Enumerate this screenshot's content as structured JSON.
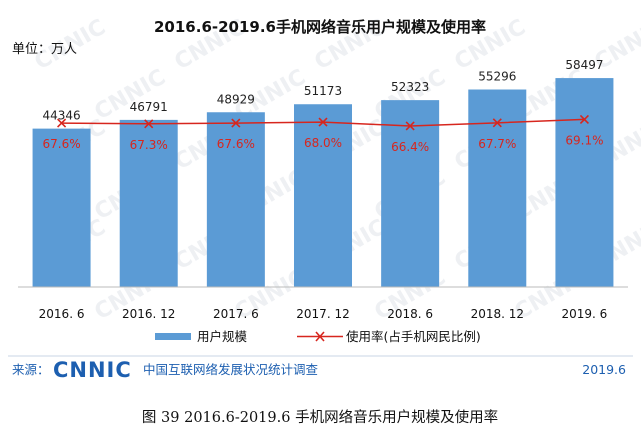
{
  "chart_data": {
    "type": "bar",
    "title": "2016.6-2019.6手机网络音乐用户规模及使用率",
    "unit_label": "单位：万人",
    "categories": [
      "2016. 6",
      "2016. 12",
      "2017. 6",
      "2017. 12",
      "2018. 6",
      "2018. 12",
      "2019. 6"
    ],
    "series": [
      {
        "name": "用户规模",
        "type": "bar",
        "values": [
          44346,
          46791,
          48929,
          51173,
          52323,
          55296,
          58497
        ],
        "labels": [
          "44346",
          "46791",
          "48929",
          "51173",
          "52323",
          "55296",
          "58497"
        ],
        "color": "#5b9bd5"
      },
      {
        "name": "使用率(占手机网民比例)",
        "type": "line",
        "values": [
          67.6,
          67.3,
          67.6,
          68.0,
          66.4,
          67.7,
          69.1
        ],
        "labels": [
          "67.6%",
          "67.3%",
          "67.6%",
          "68.0%",
          "66.4%",
          "67.7%",
          "69.1%"
        ],
        "color": "#d7261e",
        "marker": "x"
      }
    ],
    "ylim": [
      0,
      70000
    ],
    "line_ylim": [
      0,
      100
    ],
    "grid": false,
    "legend_position": "bottom"
  },
  "footer": {
    "source_label": "来源：",
    "logo_text": "CNNIC",
    "org_name": "中国互联网络发展状况统计调查",
    "date": "2019.6"
  },
  "caption": "图 39   2016.6-2019.6 手机网络音乐用户规模及使用率",
  "colors": {
    "accent": "#1d5fb0",
    "bar": "#5b9bd5",
    "line": "#d7261e",
    "watermark": "#eef0f3"
  }
}
